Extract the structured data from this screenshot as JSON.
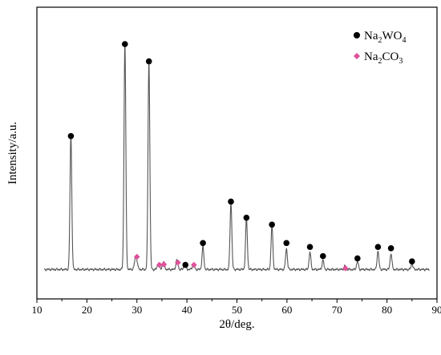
{
  "chart_data": {
    "type": "line",
    "title": "",
    "xlabel": "2θ/deg.",
    "ylabel": "Intensity/a.u.",
    "xlim": [
      10,
      90
    ],
    "ylim": [
      0,
      100
    ],
    "xticks": [
      10,
      20,
      30,
      40,
      50,
      60,
      70,
      80,
      90
    ],
    "grid": false,
    "legend_position": "top-right",
    "legend": [
      {
        "id": "na2wo4",
        "base": "Na",
        "sub1": "2",
        "mid": "WO",
        "sub2": "4",
        "marker": "circle",
        "color": "#000000"
      },
      {
        "id": "na2co3",
        "base": "Na",
        "sub1": "2",
        "mid": "CO",
        "sub2": "3",
        "marker": "diamond",
        "color": "#e0509a"
      }
    ],
    "baseline": 2.0,
    "peaks": [
      {
        "x": 16.8,
        "h": 58,
        "w": 0.18
      },
      {
        "x": 27.6,
        "h": 98,
        "w": 0.18
      },
      {
        "x": 29.8,
        "h": 6,
        "w": 0.25
      },
      {
        "x": 32.4,
        "h": 90,
        "w": 0.18
      },
      {
        "x": 34.3,
        "h": 3,
        "w": 0.2
      },
      {
        "x": 35.3,
        "h": 3.5,
        "w": 0.2
      },
      {
        "x": 38.0,
        "h": 4,
        "w": 0.2
      },
      {
        "x": 39.6,
        "h": 3,
        "w": 0.2
      },
      {
        "x": 41.3,
        "h": 2.5,
        "w": 0.2
      },
      {
        "x": 43.2,
        "h": 10,
        "w": 0.18
      },
      {
        "x": 48.8,
        "h": 29,
        "w": 0.18
      },
      {
        "x": 51.9,
        "h": 22,
        "w": 0.18
      },
      {
        "x": 57.0,
        "h": 19,
        "w": 0.18
      },
      {
        "x": 59.9,
        "h": 9,
        "w": 0.18
      },
      {
        "x": 64.6,
        "h": 7.5,
        "w": 0.18
      },
      {
        "x": 67.2,
        "h": 4,
        "w": 0.18
      },
      {
        "x": 71.6,
        "h": 1.5,
        "w": 0.2
      },
      {
        "x": 74.1,
        "h": 3.5,
        "w": 0.18
      },
      {
        "x": 78.2,
        "h": 8,
        "w": 0.18
      },
      {
        "x": 80.8,
        "h": 7,
        "w": 0.18
      },
      {
        "x": 85.0,
        "h": 2.5,
        "w": 0.18
      }
    ],
    "markers": [
      {
        "x": 16.8,
        "y": 60,
        "series": "na2wo4"
      },
      {
        "x": 27.6,
        "y": 100,
        "series": "na2wo4"
      },
      {
        "x": 32.4,
        "y": 92.5,
        "series": "na2wo4"
      },
      {
        "x": 30.0,
        "y": 7.5,
        "series": "na2co3"
      },
      {
        "x": 34.5,
        "y": 4,
        "series": "na2co3"
      },
      {
        "x": 35.4,
        "y": 4.2,
        "series": "na2co3"
      },
      {
        "x": 38.2,
        "y": 5,
        "series": "na2co3"
      },
      {
        "x": 39.7,
        "y": 4,
        "series": "na2wo4"
      },
      {
        "x": 41.4,
        "y": 4,
        "series": "na2co3"
      },
      {
        "x": 43.2,
        "y": 13.5,
        "series": "na2wo4"
      },
      {
        "x": 48.8,
        "y": 31.5,
        "series": "na2wo4"
      },
      {
        "x": 51.9,
        "y": 24.5,
        "series": "na2wo4"
      },
      {
        "x": 57.0,
        "y": 21.5,
        "series": "na2wo4"
      },
      {
        "x": 59.9,
        "y": 13.5,
        "series": "na2wo4"
      },
      {
        "x": 64.6,
        "y": 11.8,
        "series": "na2wo4"
      },
      {
        "x": 67.2,
        "y": 7.8,
        "series": "na2wo4"
      },
      {
        "x": 71.7,
        "y": 2.5,
        "series": "na2co3"
      },
      {
        "x": 74.1,
        "y": 6.8,
        "series": "na2wo4"
      },
      {
        "x": 78.2,
        "y": 11.8,
        "series": "na2wo4"
      },
      {
        "x": 80.8,
        "y": 11.2,
        "series": "na2wo4"
      },
      {
        "x": 85.0,
        "y": 5.5,
        "series": "na2wo4"
      }
    ]
  }
}
